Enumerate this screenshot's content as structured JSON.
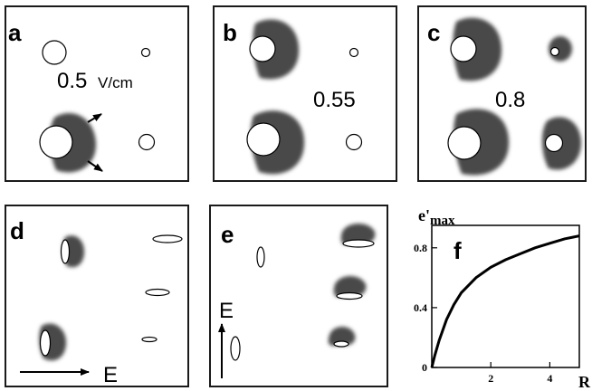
{
  "panels": {
    "a": {
      "label": "a",
      "field_value": "0.5",
      "field_unit": "V/cm"
    },
    "b": {
      "label": "b",
      "field_value": "0.55"
    },
    "c": {
      "label": "c",
      "field_value": "0.8"
    },
    "d": {
      "label": "d",
      "field_label": "E"
    },
    "e": {
      "label": "e",
      "field_label": "E"
    },
    "f": {
      "label": "f"
    }
  },
  "colors": {
    "background": "#ffffff",
    "frame": "#1a1a1a",
    "cloud": "#4a4a4a",
    "drop": "#ffffff",
    "curve": "#000000"
  },
  "chart_data": {
    "type": "line",
    "title": "",
    "ylabel_main": "e'",
    "ylabel_sub": "max",
    "xlabel": "R",
    "xlim": [
      0,
      5
    ],
    "ylim": [
      0,
      0.95
    ],
    "x_ticks": [
      {
        "value": 2,
        "label": "2"
      },
      {
        "value": 4,
        "label": "4"
      }
    ],
    "y_ticks": [
      {
        "value": 0,
        "label": "0"
      },
      {
        "value": 0.4,
        "label": "0.4"
      },
      {
        "value": 0.8,
        "label": "0.8"
      }
    ],
    "grid": false,
    "series": [
      {
        "x": [
          0,
          0.1,
          0.25,
          0.5,
          0.75,
          1.0,
          1.5,
          2.0,
          2.5,
          3.0,
          3.5,
          4.0,
          4.5,
          5.0
        ],
        "values": [
          0,
          0.08,
          0.18,
          0.32,
          0.42,
          0.5,
          0.6,
          0.67,
          0.72,
          0.76,
          0.8,
          0.83,
          0.86,
          0.88
        ]
      }
    ]
  }
}
